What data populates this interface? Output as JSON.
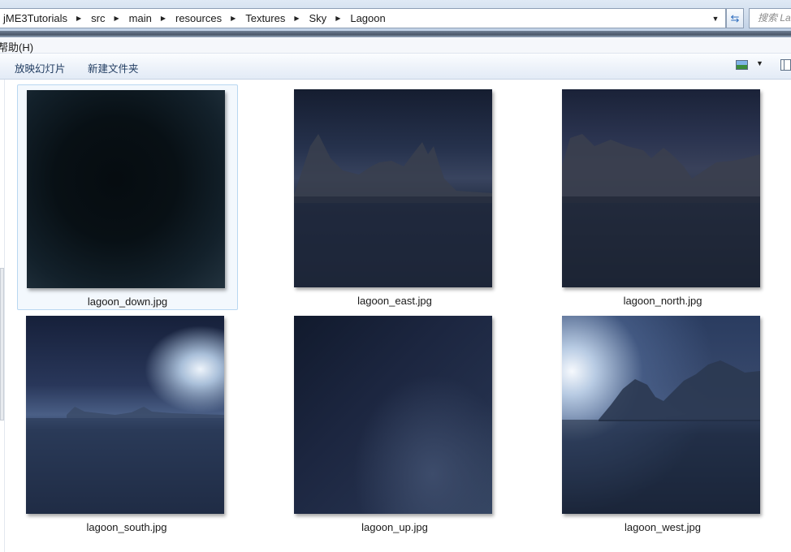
{
  "address_bar": {
    "breadcrumbs": [
      "jME3Tutorials",
      "src",
      "main",
      "resources",
      "Textures",
      "Sky",
      "Lagoon"
    ],
    "search_placeholder": "搜索 La"
  },
  "menu": {
    "help_label": "帮助(H)"
  },
  "toolbar": {
    "slideshow_label": "放映幻灯片",
    "new_folder_label": "新建文件夹"
  },
  "files": [
    {
      "name": "lagoon_down.jpg",
      "selected": true
    },
    {
      "name": "lagoon_east.jpg",
      "selected": false
    },
    {
      "name": "lagoon_north.jpg",
      "selected": false
    },
    {
      "name": "lagoon_south.jpg",
      "selected": false
    },
    {
      "name": "lagoon_up.jpg",
      "selected": false
    },
    {
      "name": "lagoon_west.jpg",
      "selected": false
    }
  ],
  "colors": {
    "selection_bg": "#f3f8fd",
    "selection_border": "#b9d7f1",
    "toolbar_text": "#1e3a5f"
  }
}
